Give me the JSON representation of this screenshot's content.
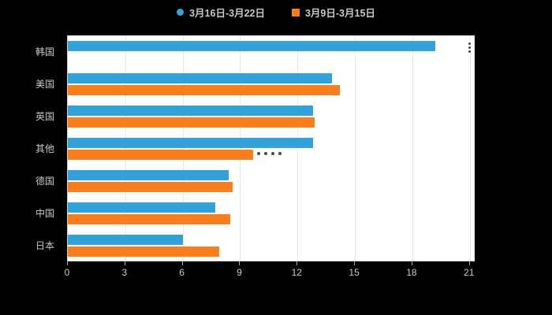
{
  "chart_data": {
    "type": "bar",
    "orientation": "horizontal",
    "title": "",
    "categories": [
      "韩国",
      "美国",
      "英国",
      "其他",
      "德国",
      "中国",
      "日本"
    ],
    "series": [
      {
        "name": "3月16日-3月22日",
        "color": "#34a2da",
        "marker": "circle",
        "values": [
          19.2,
          13.8,
          12.8,
          12.8,
          8.4,
          7.7,
          6.0
        ]
      },
      {
        "name": "3月9日-3月15日",
        "color": "#f97e1e",
        "marker": "square",
        "values": [
          null,
          14.2,
          12.9,
          9.7,
          8.6,
          8.5,
          7.9
        ]
      }
    ],
    "x_ticks": [
      "0",
      "3",
      "6",
      "9",
      "12",
      "15",
      "18",
      "21"
    ],
    "xlim": [
      0,
      21.3
    ],
    "grid": true,
    "legend_position": "top-center",
    "colors": {
      "page_background": "#000000",
      "plot_background": "#ffffff",
      "grid_line": "#e8e8e8",
      "axis_line": "#cccccc",
      "tick_mark": "#aaaaaa",
      "text": "#c8c8c8"
    }
  }
}
